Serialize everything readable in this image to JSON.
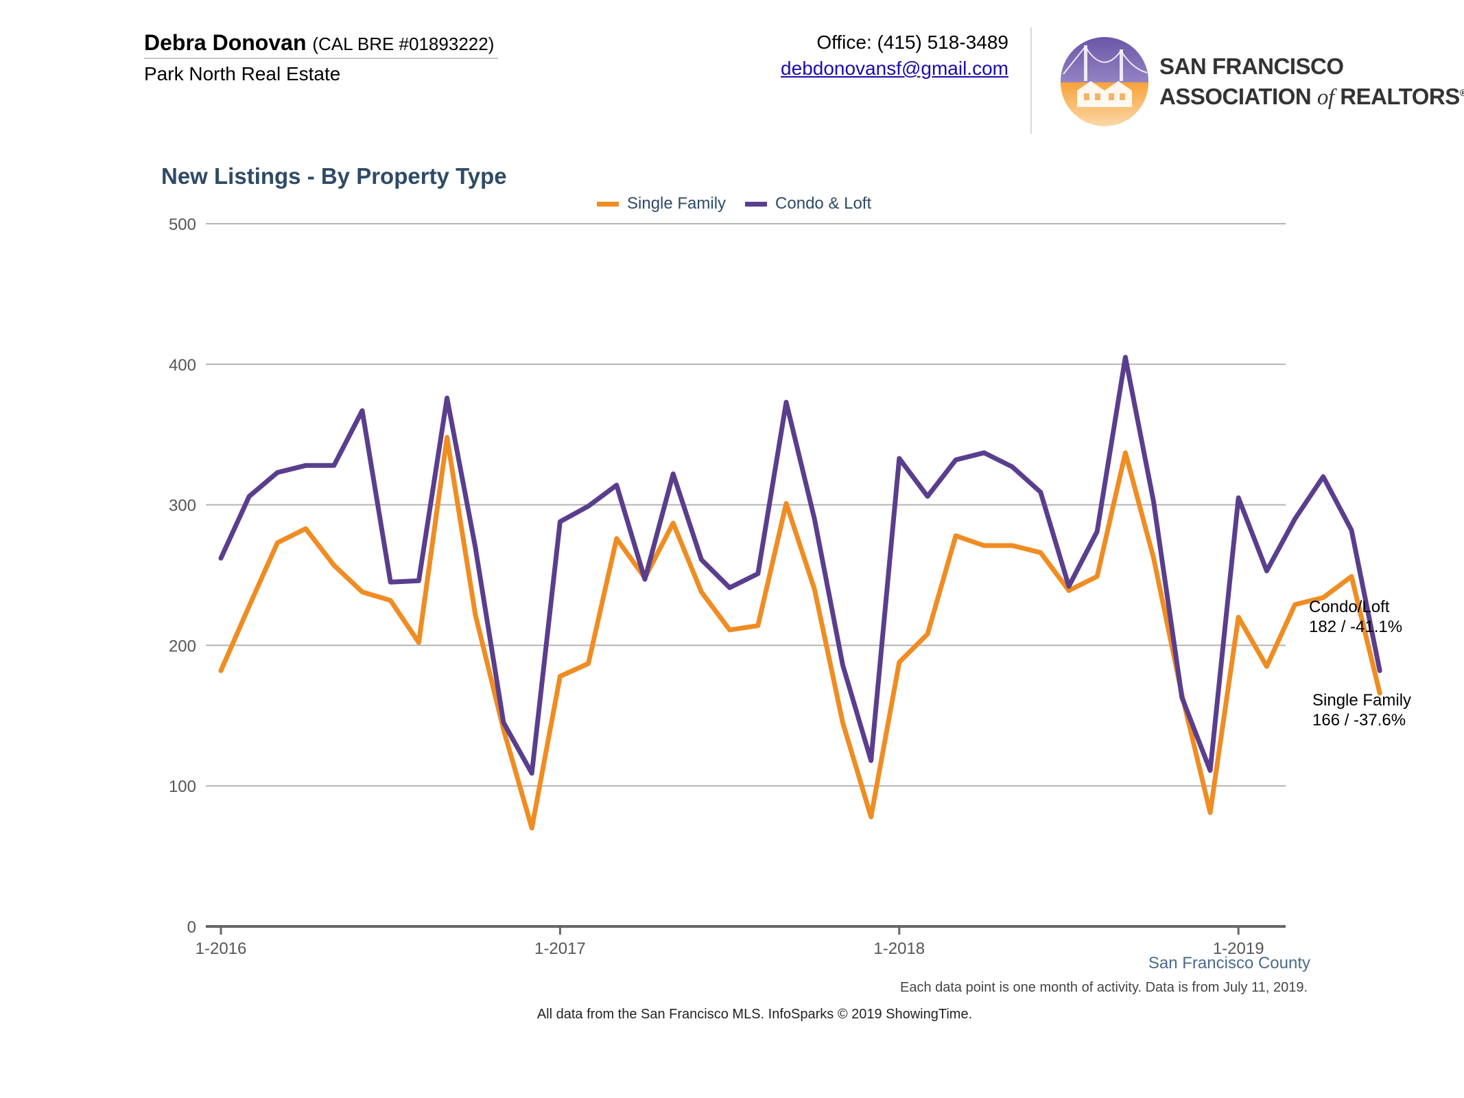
{
  "header": {
    "agent_name": "Debra Donovan",
    "agent_license": "(CAL BRE #01893222)",
    "brokerage": "Park North Real Estate",
    "office_phone": "Office: (415) 518-3489",
    "email": "debdonovansf@gmail.com",
    "association": {
      "line1": "SAN FRANCISCO",
      "line2_a": "ASSOCIATION",
      "line2_of": "of",
      "line2_b": "REALTORS",
      "registered": "®"
    }
  },
  "legend": {
    "single_family": "Single Family",
    "condo_loft": "Condo & Loft"
  },
  "end_labels": {
    "condo_name": "Condo/Loft",
    "condo_value": "182 / -41.1%",
    "sf_name": "Single Family",
    "sf_value": "166 / -37.6%"
  },
  "footer": {
    "region": "San Francisco County",
    "note": "Each data point is one month of activity. Data is from July 11, 2019.",
    "source": "All data from the San Francisco MLS. InfoSparks © 2019 ShowingTime."
  },
  "colors": {
    "single_family": "#ef8c22",
    "condo_loft": "#5a3e8e",
    "title": "#2e4a66",
    "grid": "#b3b3b3",
    "axis": "#666666"
  },
  "chart_data": {
    "type": "line",
    "title": "New Listings - By Property Type",
    "xlabel": "",
    "ylabel": "",
    "ylim": [
      0,
      500
    ],
    "yticks": [
      0,
      100,
      200,
      300,
      400,
      500
    ],
    "xticks": [
      {
        "label": "1-2016",
        "index": 0
      },
      {
        "label": "1-2017",
        "index": 12
      },
      {
        "label": "1-2018",
        "index": 24
      },
      {
        "label": "1-2019",
        "index": 36
      }
    ],
    "x": [
      "1-2016",
      "2-2016",
      "3-2016",
      "4-2016",
      "5-2016",
      "6-2016",
      "7-2016",
      "8-2016",
      "9-2016",
      "10-2016",
      "11-2016",
      "12-2016",
      "1-2017",
      "2-2017",
      "3-2017",
      "4-2017",
      "5-2017",
      "6-2017",
      "7-2017",
      "8-2017",
      "9-2017",
      "10-2017",
      "11-2017",
      "12-2017",
      "1-2018",
      "2-2018",
      "3-2018",
      "4-2018",
      "5-2018",
      "6-2018",
      "7-2018",
      "8-2018",
      "9-2018",
      "10-2018",
      "11-2018",
      "12-2018",
      "1-2019",
      "2-2019",
      "3-2019",
      "4-2019",
      "5-2019",
      "6-2019"
    ],
    "series": [
      {
        "name": "Single Family",
        "color": "#ef8c22",
        "values": [
          182,
          228,
          273,
          283,
          257,
          238,
          232,
          202,
          348,
          222,
          140,
          70,
          178,
          187,
          276,
          248,
          287,
          238,
          211,
          214,
          301,
          240,
          145,
          78,
          188,
          208,
          278,
          271,
          271,
          266,
          239,
          249,
          337,
          262,
          165,
          81,
          220,
          185,
          229,
          234,
          249,
          166
        ]
      },
      {
        "name": "Condo & Loft",
        "color": "#5a3e8e",
        "values": [
          262,
          306,
          323,
          328,
          328,
          367,
          245,
          246,
          376,
          270,
          145,
          109,
          288,
          299,
          314,
          247,
          322,
          261,
          241,
          251,
          373,
          290,
          186,
          118,
          333,
          306,
          332,
          337,
          327,
          309,
          242,
          281,
          405,
          302,
          163,
          111,
          305,
          253,
          290,
          320,
          282,
          182
        ]
      }
    ],
    "grid": true,
    "legend_position": "top-center"
  }
}
